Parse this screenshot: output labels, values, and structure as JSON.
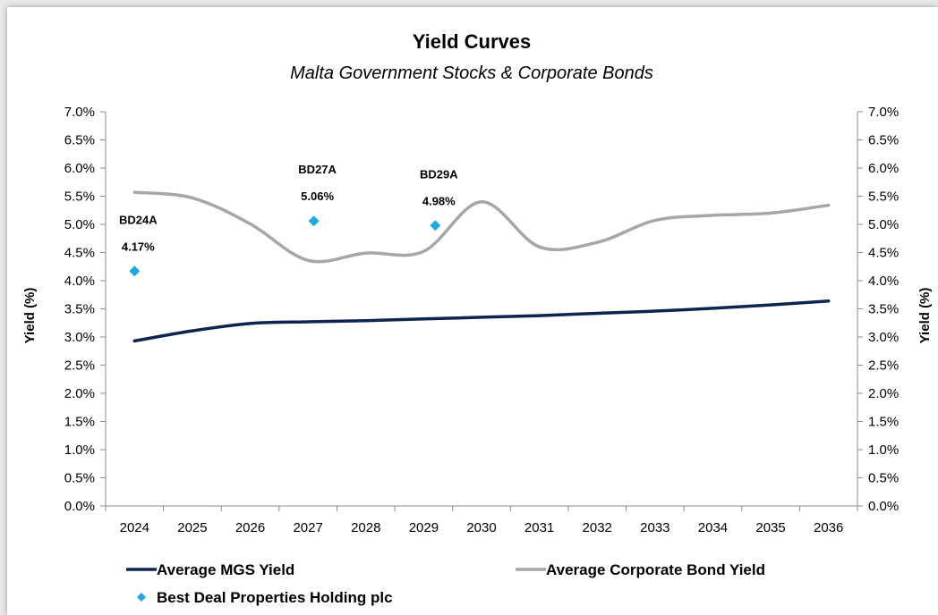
{
  "chart_data": {
    "type": "line",
    "title": "Yield Curves",
    "subtitle": "Malta Government Stocks & Corporate Bonds",
    "ylabel_left": "Yield (%)",
    "ylabel_right": "Yield (%)",
    "x": [
      "2024",
      "2025",
      "2026",
      "2027",
      "2028",
      "2029",
      "2030",
      "2031",
      "2032",
      "2033",
      "2034",
      "2035",
      "2036"
    ],
    "ylim": [
      0,
      7
    ],
    "yticks": [
      "0.0%",
      "0.5%",
      "1.0%",
      "1.5%",
      "2.0%",
      "2.5%",
      "3.0%",
      "3.5%",
      "4.0%",
      "4.5%",
      "5.0%",
      "5.5%",
      "6.0%",
      "6.5%",
      "7.0%"
    ],
    "series": [
      {
        "name": "Average MGS Yield",
        "color": "#0d2350",
        "x": [
          2024,
          2025,
          2026,
          2027,
          2028,
          2029,
          2030,
          2031,
          2032,
          2033,
          2034,
          2035,
          2036
        ],
        "values": [
          2.93,
          3.11,
          3.24,
          3.27,
          3.29,
          3.32,
          3.35,
          3.38,
          3.42,
          3.46,
          3.51,
          3.57,
          3.64
        ]
      },
      {
        "name": "Average Corporate Bond Yield",
        "color": "#a6a6a6",
        "x": [
          2024,
          2025,
          2026,
          2027,
          2028,
          2029,
          2030,
          2031,
          2032,
          2033,
          2034,
          2035,
          2036
        ],
        "values": [
          5.57,
          5.47,
          5.01,
          4.36,
          4.49,
          4.52,
          5.4,
          4.6,
          4.68,
          5.07,
          5.16,
          5.2,
          5.34
        ]
      }
    ],
    "scatter": {
      "name": "Best Deal Properties Holding plc",
      "color": "#1fa9e1",
      "points": [
        {
          "x": 2024.0,
          "y": 4.17,
          "label": "BD24A",
          "value_label": "4.17%"
        },
        {
          "x": 2027.1,
          "y": 5.06,
          "label": "BD27A",
          "value_label": "5.06%"
        },
        {
          "x": 2029.2,
          "y": 4.98,
          "label": "BD29A",
          "value_label": "4.98%"
        }
      ]
    },
    "legend": [
      {
        "label": "Average MGS Yield",
        "kind": "line",
        "color": "#0d2350"
      },
      {
        "label": "Average Corporate Bond Yield",
        "kind": "line",
        "color": "#a6a6a6"
      },
      {
        "label": "Best Deal Properties Holding plc",
        "kind": "marker",
        "color": "#1fa9e1"
      }
    ],
    "legend_position": "bottom",
    "grid": false
  }
}
